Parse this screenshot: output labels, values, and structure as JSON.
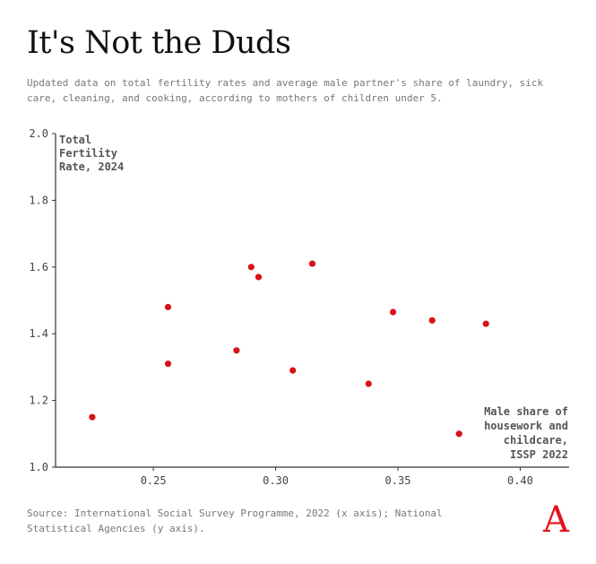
{
  "title": "It's Not the Duds",
  "subtitle": "Updated data on total fertility rates and average male partner's share of laundry, sick care, cleaning, and cooking, according to mothers of children under 5.",
  "source": "Source: International Social Survey Programme, 2022 (x axis); National Statistical Agencies (y axis).",
  "logo": "A",
  "chart_data": {
    "type": "scatter",
    "ylabel_lines": [
      "Total",
      "Fertility",
      "Rate, 2024"
    ],
    "xlabel_lines": [
      "Male share of",
      "housework and",
      "childcare,",
      "ISSP 2022"
    ],
    "xlim": [
      0.21,
      0.42
    ],
    "ylim": [
      1.0,
      2.0
    ],
    "xticks": [
      0.25,
      0.3,
      0.35,
      0.4
    ],
    "xtick_labels": [
      "0.25",
      "0.30",
      "0.35",
      "0.40"
    ],
    "yticks": [
      1.0,
      1.2,
      1.4,
      1.6,
      1.8,
      2.0
    ],
    "ytick_labels": [
      "1.0",
      "1.2",
      "1.4",
      "1.6",
      "1.8",
      "2.0"
    ],
    "grid": false,
    "point_color": "#d7121b",
    "points": [
      {
        "x": 0.225,
        "y": 1.15
      },
      {
        "x": 0.256,
        "y": 1.48
      },
      {
        "x": 0.256,
        "y": 1.31
      },
      {
        "x": 0.284,
        "y": 1.35
      },
      {
        "x": 0.29,
        "y": 1.6
      },
      {
        "x": 0.293,
        "y": 1.57
      },
      {
        "x": 0.307,
        "y": 1.29
      },
      {
        "x": 0.315,
        "y": 1.61
      },
      {
        "x": 0.338,
        "y": 1.25
      },
      {
        "x": 0.348,
        "y": 1.465
      },
      {
        "x": 0.364,
        "y": 1.44
      },
      {
        "x": 0.375,
        "y": 1.1
      },
      {
        "x": 0.386,
        "y": 1.43
      }
    ]
  }
}
